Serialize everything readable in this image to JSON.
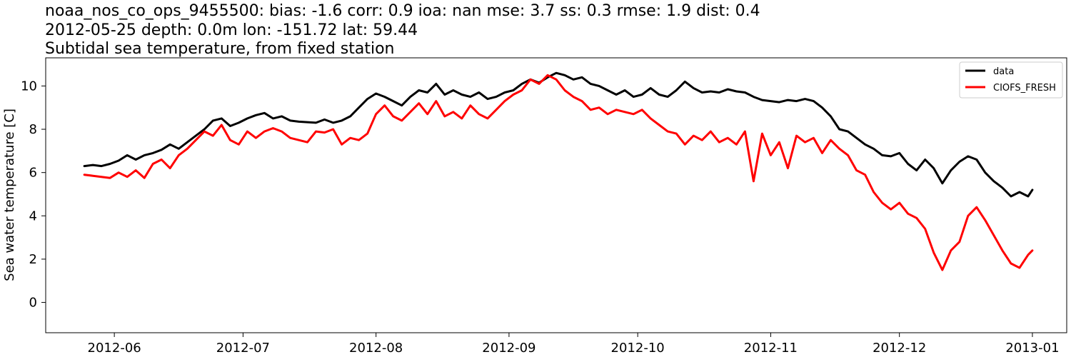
{
  "chart_data": {
    "type": "line",
    "title_lines": [
      "noaa_nos_co_ops_9455500: bias: -1.6  corr: 0.9  ioa: nan  mse: 3.7  ss: 0.3  rmse: 1.9  dist: 0.4",
      "2012-05-25 depth: 0.0m lon: -151.72 lat: 59.44",
      "Subtidal sea temperature, from fixed station"
    ],
    "xlabel": "",
    "ylabel": "Sea water temperature [C]",
    "xlim": [
      "2012-05-16",
      "2013-01-09"
    ],
    "ylim": [
      -1.4,
      11.3
    ],
    "x_ticks": [
      "2012-06-01",
      "2012-07-01",
      "2012-08-01",
      "2012-09-01",
      "2012-10-01",
      "2012-11-01",
      "2012-12-01",
      "2013-01-01"
    ],
    "x_tick_labels": [
      "2012-06",
      "2012-07",
      "2012-08",
      "2012-09",
      "2012-10",
      "2012-11",
      "2012-12",
      "2013-01"
    ],
    "y_ticks": [
      0,
      2,
      4,
      6,
      8,
      10
    ],
    "y_tick_labels": [
      "0",
      "2",
      "4",
      "6",
      "8",
      "10"
    ],
    "grid": false,
    "legend_position": "top-right",
    "series": [
      {
        "name": "data",
        "color": "#000000",
        "points": [
          [
            "2012-05-25",
            6.3
          ],
          [
            "2012-05-27",
            6.35
          ],
          [
            "2012-05-29",
            6.3
          ],
          [
            "2012-05-31",
            6.4
          ],
          [
            "2012-06-02",
            6.55
          ],
          [
            "2012-06-04",
            6.8
          ],
          [
            "2012-06-06",
            6.6
          ],
          [
            "2012-06-08",
            6.8
          ],
          [
            "2012-06-10",
            6.9
          ],
          [
            "2012-06-12",
            7.05
          ],
          [
            "2012-06-14",
            7.3
          ],
          [
            "2012-06-16",
            7.1
          ],
          [
            "2012-06-18",
            7.4
          ],
          [
            "2012-06-20",
            7.7
          ],
          [
            "2012-06-22",
            8.0
          ],
          [
            "2012-06-24",
            8.4
          ],
          [
            "2012-06-26",
            8.5
          ],
          [
            "2012-06-28",
            8.15
          ],
          [
            "2012-06-30",
            8.3
          ],
          [
            "2012-07-02",
            8.5
          ],
          [
            "2012-07-04",
            8.65
          ],
          [
            "2012-07-06",
            8.75
          ],
          [
            "2012-07-08",
            8.5
          ],
          [
            "2012-07-10",
            8.6
          ],
          [
            "2012-07-12",
            8.4
          ],
          [
            "2012-07-14",
            8.35
          ],
          [
            "2012-07-18",
            8.3
          ],
          [
            "2012-07-20",
            8.45
          ],
          [
            "2012-07-22",
            8.3
          ],
          [
            "2012-07-24",
            8.4
          ],
          [
            "2012-07-26",
            8.6
          ],
          [
            "2012-07-28",
            9.0
          ],
          [
            "2012-07-30",
            9.4
          ],
          [
            "2012-08-01",
            9.65
          ],
          [
            "2012-08-03",
            9.5
          ],
          [
            "2012-08-05",
            9.3
          ],
          [
            "2012-08-07",
            9.1
          ],
          [
            "2012-08-09",
            9.5
          ],
          [
            "2012-08-11",
            9.8
          ],
          [
            "2012-08-13",
            9.7
          ],
          [
            "2012-08-15",
            10.1
          ],
          [
            "2012-08-17",
            9.6
          ],
          [
            "2012-08-19",
            9.8
          ],
          [
            "2012-08-21",
            9.6
          ],
          [
            "2012-08-23",
            9.5
          ],
          [
            "2012-08-25",
            9.7
          ],
          [
            "2012-08-27",
            9.4
          ],
          [
            "2012-08-29",
            9.5
          ],
          [
            "2012-08-31",
            9.7
          ],
          [
            "2012-09-02",
            9.8
          ],
          [
            "2012-09-04",
            10.1
          ],
          [
            "2012-09-06",
            10.3
          ],
          [
            "2012-09-08",
            10.15
          ],
          [
            "2012-09-10",
            10.4
          ],
          [
            "2012-09-12",
            10.6
          ],
          [
            "2012-09-14",
            10.5
          ],
          [
            "2012-09-16",
            10.3
          ],
          [
            "2012-09-18",
            10.4
          ],
          [
            "2012-09-20",
            10.1
          ],
          [
            "2012-09-22",
            10.0
          ],
          [
            "2012-09-24",
            9.8
          ],
          [
            "2012-09-26",
            9.6
          ],
          [
            "2012-09-28",
            9.8
          ],
          [
            "2012-09-30",
            9.5
          ],
          [
            "2012-10-02",
            9.6
          ],
          [
            "2012-10-04",
            9.9
          ],
          [
            "2012-10-06",
            9.6
          ],
          [
            "2012-10-08",
            9.5
          ],
          [
            "2012-10-10",
            9.8
          ],
          [
            "2012-10-12",
            10.2
          ],
          [
            "2012-10-14",
            9.9
          ],
          [
            "2012-10-16",
            9.7
          ],
          [
            "2012-10-18",
            9.75
          ],
          [
            "2012-10-20",
            9.7
          ],
          [
            "2012-10-22",
            9.85
          ],
          [
            "2012-10-24",
            9.75
          ],
          [
            "2012-10-26",
            9.7
          ],
          [
            "2012-10-28",
            9.5
          ],
          [
            "2012-10-30",
            9.35
          ],
          [
            "2012-11-01",
            9.3
          ],
          [
            "2012-11-03",
            9.25
          ],
          [
            "2012-11-05",
            9.35
          ],
          [
            "2012-11-07",
            9.3
          ],
          [
            "2012-11-09",
            9.4
          ],
          [
            "2012-11-11",
            9.3
          ],
          [
            "2012-11-13",
            9.0
          ],
          [
            "2012-11-15",
            8.6
          ],
          [
            "2012-11-17",
            8.0
          ],
          [
            "2012-11-19",
            7.9
          ],
          [
            "2012-11-21",
            7.6
          ],
          [
            "2012-11-23",
            7.3
          ],
          [
            "2012-11-25",
            7.1
          ],
          [
            "2012-11-27",
            6.8
          ],
          [
            "2012-11-29",
            6.75
          ],
          [
            "2012-12-01",
            6.9
          ],
          [
            "2012-12-03",
            6.4
          ],
          [
            "2012-12-05",
            6.1
          ],
          [
            "2012-12-07",
            6.6
          ],
          [
            "2012-12-09",
            6.2
          ],
          [
            "2012-12-11",
            5.5
          ],
          [
            "2012-12-13",
            6.1
          ],
          [
            "2012-12-15",
            6.5
          ],
          [
            "2012-12-17",
            6.75
          ],
          [
            "2012-12-19",
            6.6
          ],
          [
            "2012-12-21",
            6.0
          ],
          [
            "2012-12-23",
            5.6
          ],
          [
            "2012-12-25",
            5.3
          ],
          [
            "2012-12-27",
            4.9
          ],
          [
            "2012-12-29",
            5.1
          ],
          [
            "2012-12-31",
            4.9
          ],
          [
            "2013-01-01",
            5.2
          ]
        ]
      },
      {
        "name": "CIOFS_FRESH",
        "color": "#ff0000",
        "points": [
          [
            "2012-05-25",
            5.9
          ],
          [
            "2012-05-27",
            5.85
          ],
          [
            "2012-05-29",
            5.8
          ],
          [
            "2012-05-31",
            5.75
          ],
          [
            "2012-06-02",
            6.0
          ],
          [
            "2012-06-04",
            5.8
          ],
          [
            "2012-06-06",
            6.1
          ],
          [
            "2012-06-08",
            5.75
          ],
          [
            "2012-06-10",
            6.4
          ],
          [
            "2012-06-12",
            6.6
          ],
          [
            "2012-06-14",
            6.2
          ],
          [
            "2012-06-16",
            6.8
          ],
          [
            "2012-06-18",
            7.1
          ],
          [
            "2012-06-20",
            7.5
          ],
          [
            "2012-06-22",
            7.9
          ],
          [
            "2012-06-24",
            7.7
          ],
          [
            "2012-06-26",
            8.2
          ],
          [
            "2012-06-28",
            7.5
          ],
          [
            "2012-06-30",
            7.3
          ],
          [
            "2012-07-02",
            7.9
          ],
          [
            "2012-07-04",
            7.6
          ],
          [
            "2012-07-06",
            7.9
          ],
          [
            "2012-07-08",
            8.05
          ],
          [
            "2012-07-10",
            7.9
          ],
          [
            "2012-07-12",
            7.6
          ],
          [
            "2012-07-14",
            7.5
          ],
          [
            "2012-07-16",
            7.4
          ],
          [
            "2012-07-18",
            7.9
          ],
          [
            "2012-07-20",
            7.85
          ],
          [
            "2012-07-22",
            8.0
          ],
          [
            "2012-07-24",
            7.3
          ],
          [
            "2012-07-26",
            7.6
          ],
          [
            "2012-07-28",
            7.5
          ],
          [
            "2012-07-30",
            7.8
          ],
          [
            "2012-08-01",
            8.7
          ],
          [
            "2012-08-03",
            9.1
          ],
          [
            "2012-08-05",
            8.6
          ],
          [
            "2012-08-07",
            8.4
          ],
          [
            "2012-08-09",
            8.8
          ],
          [
            "2012-08-11",
            9.2
          ],
          [
            "2012-08-13",
            8.7
          ],
          [
            "2012-08-15",
            9.3
          ],
          [
            "2012-08-17",
            8.6
          ],
          [
            "2012-08-19",
            8.8
          ],
          [
            "2012-08-21",
            8.5
          ],
          [
            "2012-08-23",
            9.1
          ],
          [
            "2012-08-25",
            8.7
          ],
          [
            "2012-08-27",
            8.5
          ],
          [
            "2012-08-29",
            8.9
          ],
          [
            "2012-08-31",
            9.3
          ],
          [
            "2012-09-02",
            9.6
          ],
          [
            "2012-09-04",
            9.8
          ],
          [
            "2012-09-06",
            10.3
          ],
          [
            "2012-09-08",
            10.1
          ],
          [
            "2012-09-10",
            10.5
          ],
          [
            "2012-09-12",
            10.3
          ],
          [
            "2012-09-14",
            9.8
          ],
          [
            "2012-09-16",
            9.5
          ],
          [
            "2012-09-18",
            9.3
          ],
          [
            "2012-09-20",
            8.9
          ],
          [
            "2012-09-22",
            9.0
          ],
          [
            "2012-09-24",
            8.7
          ],
          [
            "2012-09-26",
            8.9
          ],
          [
            "2012-09-28",
            8.8
          ],
          [
            "2012-09-30",
            8.7
          ],
          [
            "2012-10-02",
            8.9
          ],
          [
            "2012-10-04",
            8.5
          ],
          [
            "2012-10-06",
            8.2
          ],
          [
            "2012-10-08",
            7.9
          ],
          [
            "2012-10-10",
            7.8
          ],
          [
            "2012-10-12",
            7.3
          ],
          [
            "2012-10-14",
            7.7
          ],
          [
            "2012-10-16",
            7.5
          ],
          [
            "2012-10-18",
            7.9
          ],
          [
            "2012-10-20",
            7.4
          ],
          [
            "2012-10-22",
            7.6
          ],
          [
            "2012-10-24",
            7.3
          ],
          [
            "2012-10-26",
            7.9
          ],
          [
            "2012-10-28",
            5.6
          ],
          [
            "2012-10-30",
            7.8
          ],
          [
            "2012-11-01",
            6.8
          ],
          [
            "2012-11-03",
            7.4
          ],
          [
            "2012-11-05",
            6.2
          ],
          [
            "2012-11-07",
            7.7
          ],
          [
            "2012-11-09",
            7.4
          ],
          [
            "2012-11-11",
            7.6
          ],
          [
            "2012-11-13",
            6.9
          ],
          [
            "2012-11-15",
            7.5
          ],
          [
            "2012-11-17",
            7.1
          ],
          [
            "2012-11-19",
            6.8
          ],
          [
            "2012-11-21",
            6.1
          ],
          [
            "2012-11-23",
            5.9
          ],
          [
            "2012-11-25",
            5.1
          ],
          [
            "2012-11-27",
            4.6
          ],
          [
            "2012-11-29",
            4.3
          ],
          [
            "2012-12-01",
            4.6
          ],
          [
            "2012-12-03",
            4.1
          ],
          [
            "2012-12-05",
            3.9
          ],
          [
            "2012-12-07",
            3.4
          ],
          [
            "2012-12-09",
            2.3
          ],
          [
            "2012-12-11",
            1.5
          ],
          [
            "2012-12-13",
            2.4
          ],
          [
            "2012-12-15",
            2.8
          ],
          [
            "2012-12-17",
            4.0
          ],
          [
            "2012-12-19",
            4.4
          ],
          [
            "2012-12-21",
            3.8
          ],
          [
            "2012-12-23",
            3.1
          ],
          [
            "2012-12-25",
            2.4
          ],
          [
            "2012-12-27",
            1.8
          ],
          [
            "2012-12-29",
            1.6
          ],
          [
            "2012-12-31",
            2.2
          ],
          [
            "2013-01-01",
            2.4
          ]
        ]
      }
    ]
  }
}
